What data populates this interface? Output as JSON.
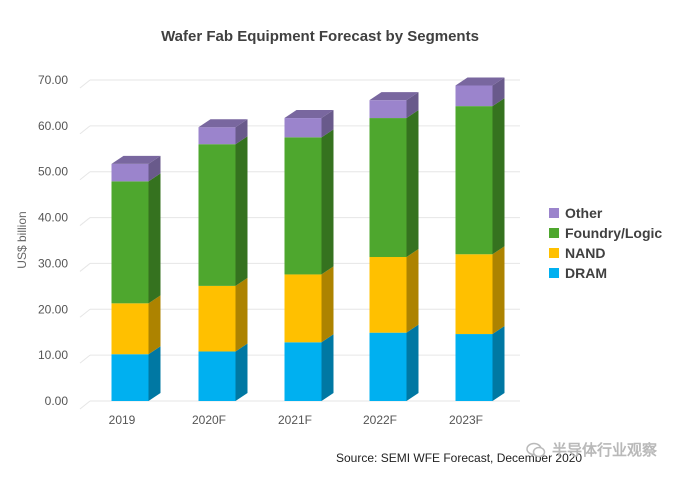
{
  "chart_data": {
    "type": "bar",
    "stacked": true,
    "title": "Wafer Fab Equipment Forecast by Segments",
    "xlabel": "",
    "ylabel": "US$ billion",
    "ylim": [
      0,
      70
    ],
    "yticks": [
      "0.00",
      "10.00",
      "20.00",
      "30.00",
      "40.00",
      "50.00",
      "60.00",
      "70.00"
    ],
    "categories": [
      "2019",
      "2020F",
      "2021F",
      "2022F",
      "2023F"
    ],
    "series": [
      {
        "name": "DRAM",
        "color": "#00b0f0",
        "values": [
          10.2,
          10.8,
          12.8,
          14.9,
          14.6
        ]
      },
      {
        "name": "NAND",
        "color": "#ffc000",
        "values": [
          11.1,
          14.3,
          14.8,
          16.5,
          17.4
        ]
      },
      {
        "name": "Foundry/Logic",
        "color": "#4ea72e",
        "values": [
          26.6,
          30.9,
          29.9,
          30.3,
          32.3
        ]
      },
      {
        "name": "Other",
        "color": "#9b84cc",
        "values": [
          3.8,
          3.7,
          4.2,
          3.9,
          4.5
        ]
      }
    ],
    "legend": [
      "Other",
      "Foundry/Logic",
      "NAND",
      "DRAM"
    ],
    "legend_position": "right",
    "grid": true
  },
  "source": "Source: SEMI WFE Forecast, December 2020",
  "watermark": "半导体行业观察"
}
